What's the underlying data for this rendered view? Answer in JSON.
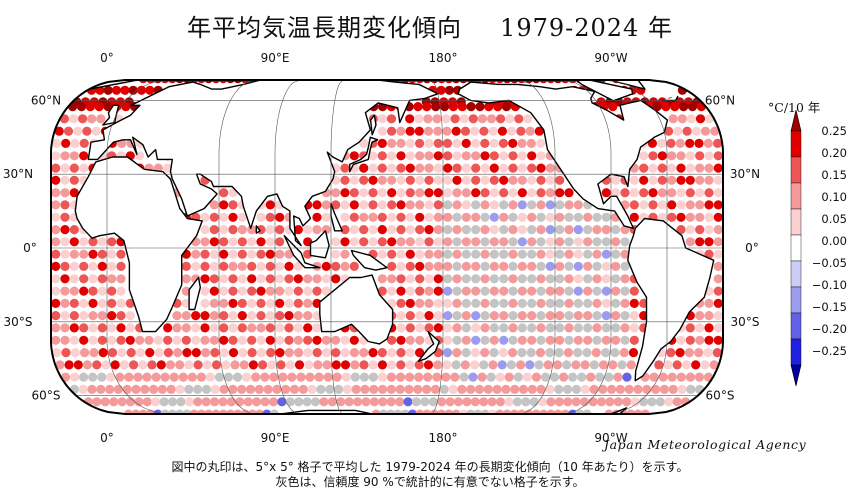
{
  "title": "年平均気温長期変化傾向",
  "period": "1979-2024 年",
  "agency": "Japan Meteorological Agency",
  "caption_line1": "図中の丸印は、5°x 5° 格子で平均した 1979-2024 年の長期変化傾向（10 年あたり）を示す。",
  "caption_line2": "灰色は、信頼度 90 %で統計的に有意でない格子を示す。",
  "lon_labels": [
    "0°",
    "90°E",
    "180°",
    "90°W"
  ],
  "lat_labels": [
    "60°N",
    "30°N",
    "0°",
    "30°S",
    "60°S"
  ],
  "colorbar": {
    "unit": "°C/10 年",
    "ticks": [
      "0.25",
      "0.20",
      "0.15",
      "0.10",
      "0.05",
      "0.00",
      "−0.05",
      "−0.10",
      "−0.15",
      "−0.20",
      "−0.25"
    ],
    "colors": [
      "#a00000",
      "#e00000",
      "#ee5555",
      "#f59a9a",
      "#fbd0d0",
      "#ffffff",
      "#ccccf6",
      "#9c9cef",
      "#6262e8",
      "#2020e0",
      "#0000a0"
    ]
  },
  "colors": {
    "not_significant": "#c4c4c4",
    "land": "#ffffff",
    "coast": "#000000"
  }
}
